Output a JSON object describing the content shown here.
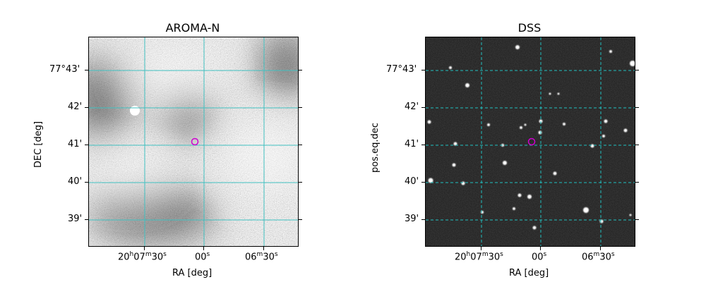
{
  "panels": [
    {
      "title": "AROMA-N",
      "xlabel": "RA [deg]",
      "ylabel": "DEC [deg]",
      "x_ticks": [
        "20h07m30s",
        "00s",
        "06m30s"
      ],
      "y_ticks": [
        "77°43'",
        "42'",
        "41'",
        "40'",
        "39'"
      ],
      "image_style": "noisy grayscale",
      "grid_color": "#40c0c0",
      "grid_style": "solid",
      "marker_color": "#d000d0"
    },
    {
      "title": "DSS",
      "xlabel": "RA [deg]",
      "ylabel": "pos.eq.dec",
      "x_ticks": [
        "20h07m30s",
        "00s",
        "06m30s"
      ],
      "y_ticks": [
        "77°43'",
        "42'",
        "41'",
        "40'",
        "39'"
      ],
      "image_style": "dark star field",
      "grid_color": "#20c0c0",
      "grid_style": "dashed",
      "marker_color": "#d000d0"
    }
  ]
}
